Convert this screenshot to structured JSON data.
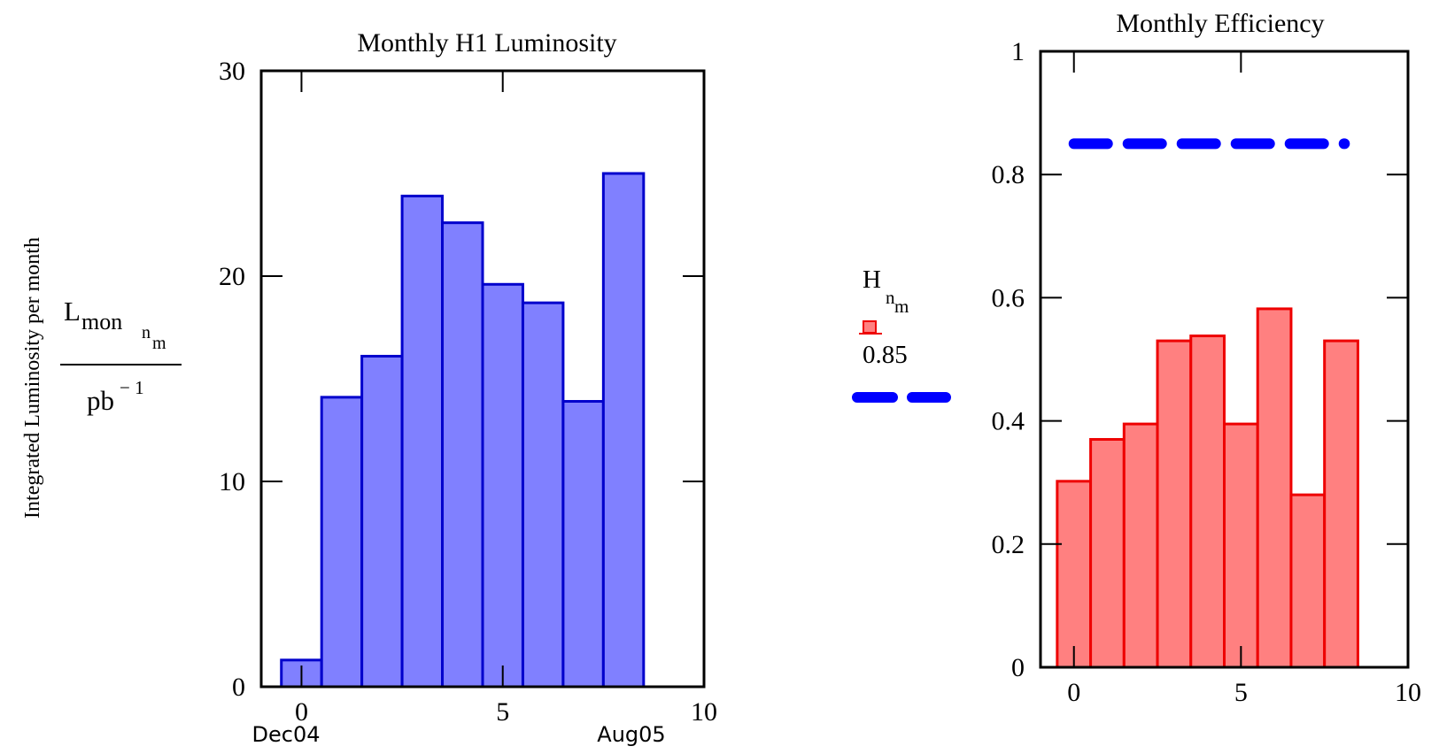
{
  "chart_data": [
    {
      "type": "bar",
      "title": "Monthly H1 Luminosity",
      "ylabel_text": "Integrated Luminosity per month",
      "y_expr_num": "L",
      "y_expr_num_sub": "mon",
      "y_expr_num_subsub": "n",
      "y_expr_num_subsubsub": "m",
      "y_expr_den": "pb",
      "y_expr_den_sup": "− 1",
      "x": [
        0,
        1,
        2,
        3,
        4,
        5,
        6,
        7,
        8
      ],
      "values": [
        1.3,
        14.1,
        16.1,
        23.9,
        22.6,
        19.6,
        18.7,
        13.9,
        25.0
      ],
      "xlim": [
        -1,
        10
      ],
      "ylim": [
        0,
        30
      ],
      "xticks": [
        "0",
        "5",
        "10"
      ],
      "xtick_values": [
        0,
        5,
        10
      ],
      "yticks": [
        "0",
        "10",
        "20",
        "30"
      ],
      "ytick_values": [
        0,
        10,
        20,
        30
      ],
      "x_start_label": "Dec04",
      "x_end_label": "Aug05",
      "bar_color": "#8080ff",
      "edge_color": "#0000cc"
    },
    {
      "type": "bar",
      "title": "Monthly Efficiency",
      "x": [
        0,
        1,
        2,
        3,
        4,
        5,
        6,
        7,
        8
      ],
      "values": [
        0.302,
        0.37,
        0.395,
        0.53,
        0.538,
        0.395,
        0.582,
        0.28,
        0.53
      ],
      "reference_value": 0.85,
      "xlim": [
        -1,
        10
      ],
      "ylim": [
        0,
        1
      ],
      "xticks": [
        "0",
        "5",
        "10"
      ],
      "xtick_values": [
        0,
        5,
        10
      ],
      "yticks": [
        "0",
        "0.2",
        "0.4",
        "0.6",
        "0.8",
        "1"
      ],
      "ytick_values": [
        0,
        0.2,
        0.4,
        0.6,
        0.8,
        1
      ],
      "legend": {
        "series1_main": "H",
        "series1_sub": "n",
        "series1_subsub": "m",
        "series2_label": "0.85"
      },
      "bar_color": "#ff8080",
      "edge_color": "#ee0000",
      "reference_color": "#0000ff"
    }
  ]
}
